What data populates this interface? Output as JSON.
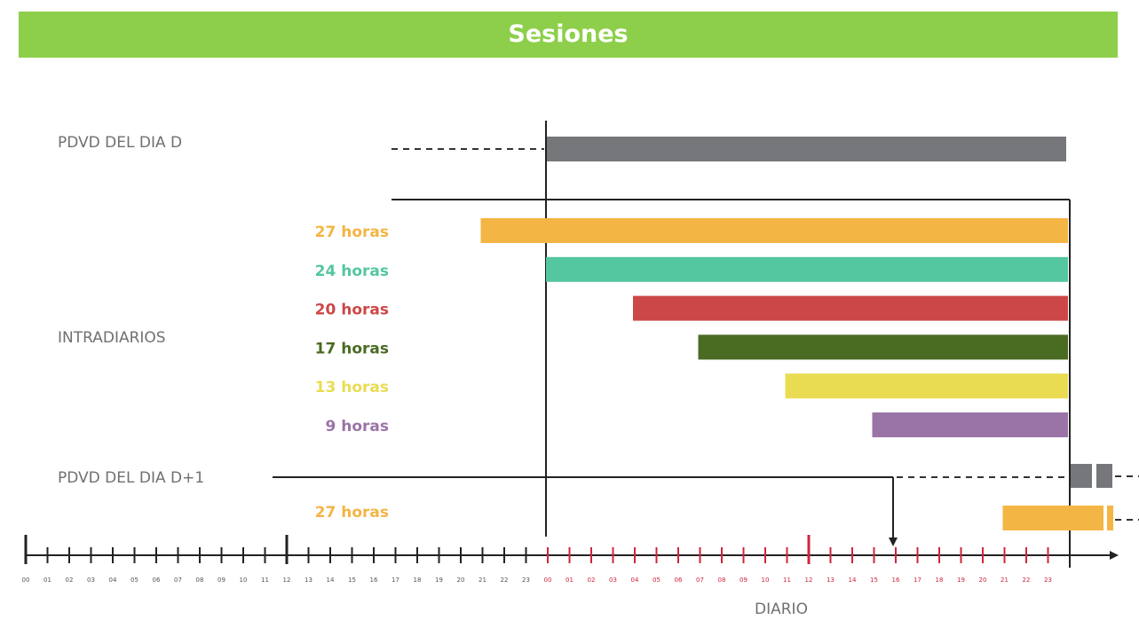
{
  "header": {
    "title": "Sesiones"
  },
  "rows": {
    "pdvd_d": "PDVD DEL DIA D",
    "intradiarios": "INTRADIARIOS",
    "pdvd_d1": "PDVD DEL DIA D+1"
  },
  "sessions": [
    {
      "label": "27 horas",
      "color": "#f3b544",
      "start_hour": 21,
      "end_hour": 48
    },
    {
      "label": "24 horas",
      "color": "#54c6a0",
      "start_hour": 24,
      "end_hour": 48
    },
    {
      "label": "20 horas",
      "color": "#cc4747",
      "start_hour": 28,
      "end_hour": 48
    },
    {
      "label": "17 horas",
      "color": "#4a6b22",
      "start_hour": 31,
      "end_hour": 48
    },
    {
      "label": "13 horas",
      "color": "#e9dc52",
      "start_hour": 35,
      "end_hour": 48
    },
    {
      "label": "9 horas",
      "color": "#9a74a6",
      "start_hour": 39,
      "end_hour": 48
    }
  ],
  "next_day_session": {
    "label": "27 horas",
    "color": "#f3b544",
    "start_hour": 45
  },
  "colors": {
    "pdvd": "#76777a",
    "text_gray": "#707070",
    "axis": "#222222",
    "axis_red": "#d0243e"
  },
  "axis": {
    "tick_labels": [
      "00",
      "01",
      "02",
      "03",
      "04",
      "05",
      "06",
      "07",
      "08",
      "09",
      "10",
      "11",
      "12",
      "13",
      "14",
      "15",
      "16",
      "17",
      "18",
      "19",
      "20",
      "21",
      "22",
      "23",
      "00",
      "01",
      "02",
      "03",
      "04",
      "05",
      "06",
      "07",
      "08",
      "09",
      "10",
      "11",
      "12",
      "13",
      "14",
      "15",
      "16",
      "17",
      "18",
      "19",
      "20",
      "21",
      "22",
      "23"
    ],
    "label": "DIARIO"
  }
}
